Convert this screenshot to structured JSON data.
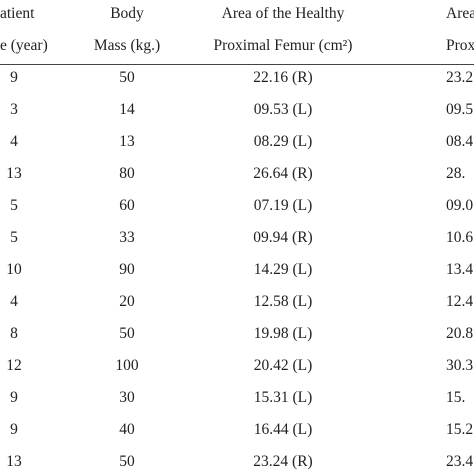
{
  "table": {
    "header": [
      [
        "atient",
        "Body",
        "Area of  the Healthy",
        "Area of the"
      ],
      [
        "e (year)",
        "Mass (kg.)",
        "Proximal Femur (cm²)",
        "Proximal"
      ]
    ],
    "rows": [
      [
        "9",
        "50",
        "22.16 (R)",
        "23.2"
      ],
      [
        "3",
        "14",
        "09.53 (L)",
        "09.5"
      ],
      [
        "4",
        "13",
        "08.29 (L)",
        "08.4"
      ],
      [
        "13",
        "80",
        "26.64 (R)",
        "28."
      ],
      [
        "5",
        "60",
        "07.19 (L)",
        "09.0"
      ],
      [
        "5",
        "33",
        "09.94 (R)",
        "10.6"
      ],
      [
        "10",
        "90",
        "14.29 (L)",
        "13.4"
      ],
      [
        "4",
        "20",
        "12.58 (L)",
        "12.4"
      ],
      [
        "8",
        "50",
        "19.98 (L)",
        "20.8"
      ],
      [
        "12",
        "100",
        "20.42 (L)",
        "30.3"
      ],
      [
        "9",
        "30",
        "15.31 (L)",
        "15."
      ],
      [
        "9",
        "40",
        "16.44 (L)",
        "15.2"
      ],
      [
        "13",
        "50",
        "23.24 (R)",
        "23.4"
      ]
    ]
  }
}
